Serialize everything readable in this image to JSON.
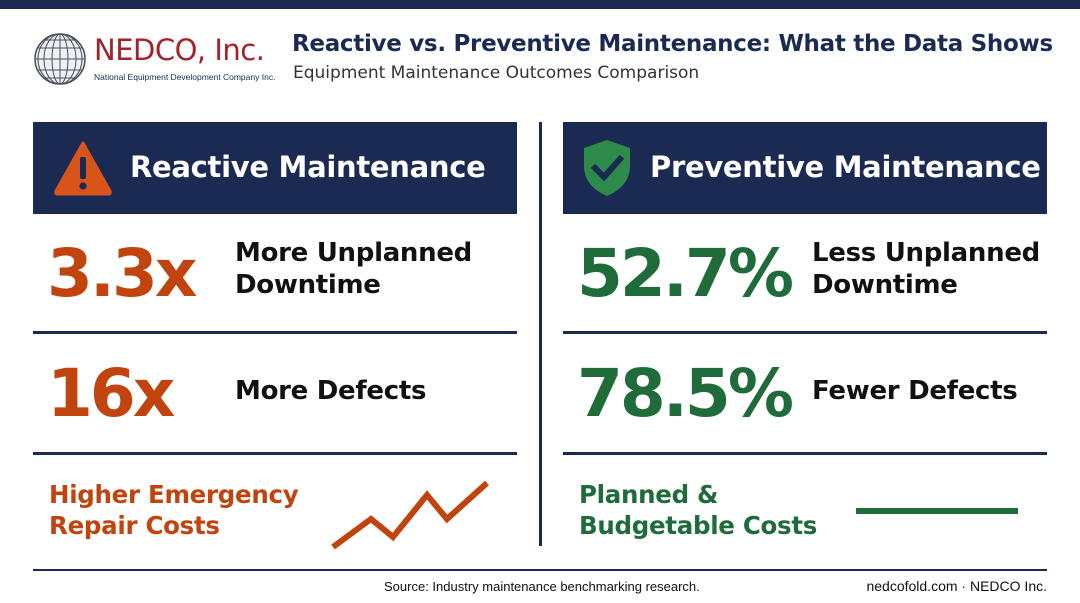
{
  "brand": {
    "name": "NEDCO, Inc.",
    "tagline": "National Equipment Development Company Inc."
  },
  "title": "Reactive vs. Preventive Maintenance: What the Data Shows",
  "subtitle": "Equipment Maintenance Outcomes Comparison",
  "colors": {
    "navy": "#1b2a52",
    "reactive": "#c1440e",
    "preventive": "#1f6b3a",
    "brand_red": "#a3232b"
  },
  "reactive": {
    "icon": "warning-icon",
    "heading": "Reactive Maintenance",
    "stats": [
      {
        "value": "3.3x",
        "label": "More Unplanned\nDowntime"
      },
      {
        "value": "16x",
        "label": "More Defects"
      }
    ],
    "cost_label": "Higher Emergency\nRepair Costs",
    "cost_icon": "rising-zigzag-line"
  },
  "preventive": {
    "icon": "shield-check-icon",
    "heading": "Preventive Maintenance",
    "stats": [
      {
        "value": "52.7%",
        "label": "Less Unplanned\nDowntime"
      },
      {
        "value": "78.5%",
        "label": "Fewer Defects"
      }
    ],
    "cost_label": "Planned &\nBudgetable Costs",
    "cost_icon": "flat-line"
  },
  "footer": {
    "source": "Source: Industry maintenance benchmarking research.",
    "site": "nedcofold.com · NEDCO Inc."
  }
}
